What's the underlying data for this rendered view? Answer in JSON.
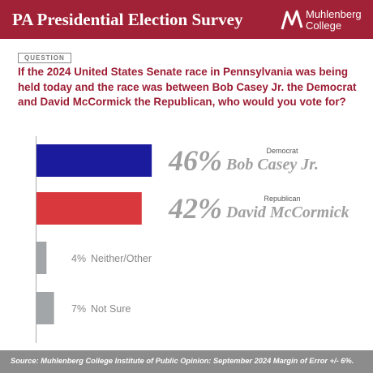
{
  "header": {
    "title": "PA Presidential Election Survey",
    "logo_line1": "Muhlenberg",
    "logo_line2": "College"
  },
  "question_tag": "QUESTION",
  "question": "If the 2024 United States Senate race in Pennsylvania was being held today and the race was between Bob Casey Jr. the Democrat and David McCormick the Republican, who would you vote for?",
  "chart_data": {
    "type": "bar",
    "orientation": "horizontal",
    "categories": [
      "Bob Casey Jr.",
      "David McCormick",
      "Neither/Other",
      "Not Sure"
    ],
    "parties": [
      "Democrat",
      "Republican",
      null,
      null
    ],
    "values": [
      46,
      42,
      4,
      7
    ],
    "value_labels": [
      "46%",
      "42%",
      "4%",
      "7%"
    ],
    "colors": [
      "#1b1b9e",
      "#d9383d",
      "#a3a6a9",
      "#a3a6a9"
    ]
  },
  "source": "Source: Muhlenberg College Institute of Public Opinion: September 2024 Margin of Error +/- 6%."
}
